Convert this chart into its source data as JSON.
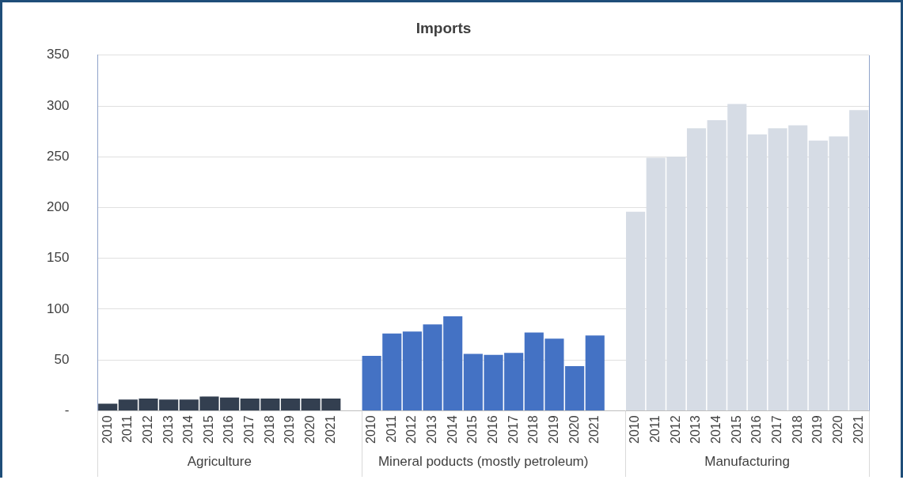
{
  "chart_data": {
    "type": "bar",
    "title": "Imports",
    "categories": [
      "2010",
      "2011",
      "2012",
      "2013",
      "2014",
      "2015",
      "2016",
      "2017",
      "2018",
      "2019",
      "2020",
      "2021",
      null,
      "2010",
      "2011",
      "2012",
      "2013",
      "2014",
      "2015",
      "2016",
      "2017",
      "2018",
      "2019",
      "2020",
      "2021",
      null,
      "2010",
      "2011",
      "2012",
      "2013",
      "2014",
      "2015",
      "2016",
      "2017",
      "2018",
      "2019",
      "2020",
      "2021"
    ],
    "series": [
      {
        "color": "#333f50",
        "values": [
          7,
          11,
          12,
          11,
          11,
          14,
          13,
          12,
          12,
          12,
          12,
          12,
          null,
          null,
          null,
          null,
          null,
          null,
          null,
          null,
          null,
          null,
          null,
          null,
          null,
          null,
          null,
          null,
          null,
          null,
          null,
          null,
          null,
          null,
          null,
          null,
          null,
          null
        ]
      },
      {
        "color": "#4472c4",
        "values": [
          null,
          null,
          null,
          null,
          null,
          null,
          null,
          null,
          null,
          null,
          null,
          null,
          null,
          54,
          76,
          78,
          85,
          93,
          56,
          55,
          57,
          77,
          71,
          44,
          74,
          null,
          null,
          null,
          null,
          null,
          null,
          null,
          null,
          null,
          null,
          null,
          null,
          null
        ]
      },
      {
        "color": "#d6dce5",
        "values": [
          null,
          null,
          null,
          null,
          null,
          null,
          null,
          null,
          null,
          null,
          null,
          null,
          null,
          null,
          null,
          null,
          null,
          null,
          null,
          null,
          null,
          null,
          null,
          null,
          null,
          null,
          196,
          249,
          250,
          278,
          286,
          302,
          272,
          278,
          281,
          266,
          270,
          296
        ]
      }
    ],
    "annotations": [
      "Agriculture",
      "Mineral poducts (mostly petroleum)",
      "Manufacturing"
    ],
    "ylim": [
      0,
      350
    ],
    "yticks": [
      {
        "value": 0,
        "label": "-"
      },
      50,
      100,
      150,
      200,
      250,
      300,
      350
    ],
    "grid": "y",
    "legend": false
  }
}
